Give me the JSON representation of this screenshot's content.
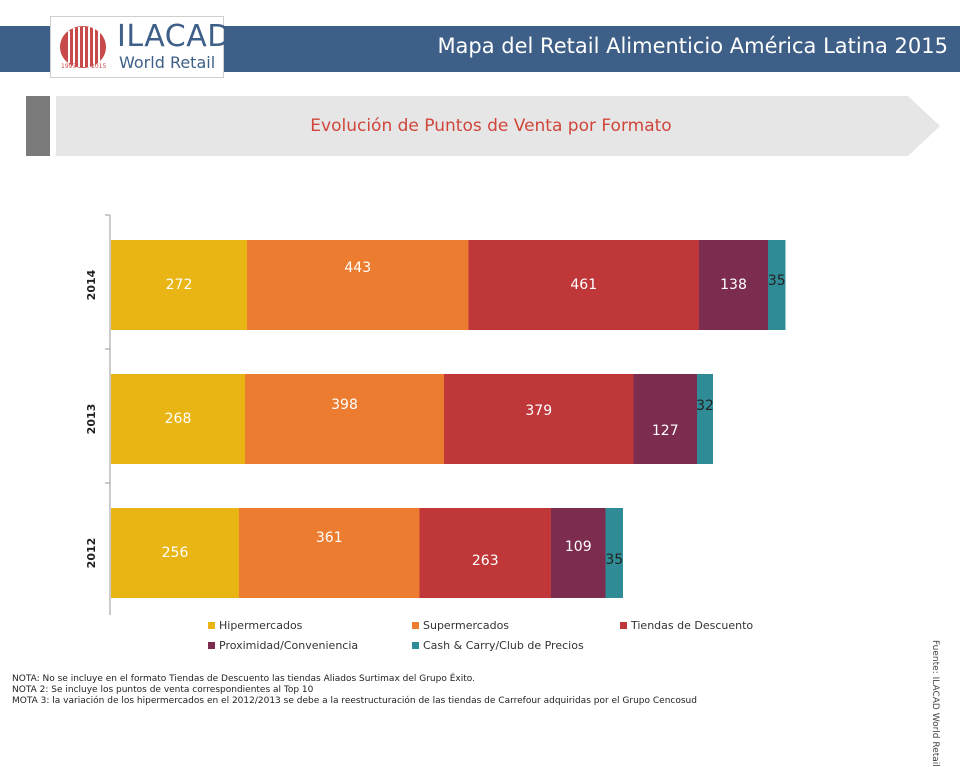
{
  "header": {
    "title": "Mapa del Retail Alimenticio América Latina 2015",
    "logo_main": "ILACAD",
    "logo_sub": "World Retail",
    "logo_badge_left": "1993",
    "logo_badge_right": "2015"
  },
  "banner": {
    "title": "Evolución de Puntos de Venta por Formato"
  },
  "chart_data": {
    "type": "bar",
    "orientation": "horizontal",
    "stacked": true,
    "categories": [
      "2014",
      "2013",
      "2012"
    ],
    "series": [
      {
        "name": "Hipermercados",
        "color": "#e8b514",
        "values": [
          272,
          268,
          256
        ]
      },
      {
        "name": "Supermercados",
        "color": "#ec7d30",
        "values": [
          443,
          398,
          361
        ]
      },
      {
        "name": "Tiendas de Descuento",
        "color": "#c0373a",
        "values": [
          461,
          379,
          263
        ]
      },
      {
        "name": "Proximidad/Conveniencia",
        "color": "#7b2c4f",
        "values": [
          138,
          127,
          109
        ]
      },
      {
        "name": "Cash & Carry/Club de Precios",
        "color": "#2f8c97",
        "values": [
          35,
          32,
          35
        ]
      }
    ],
    "grid": false,
    "legend_position": "bottom"
  },
  "notes": [
    "NOTA: No se incluye en el formato Tiendas de Descuento las tiendas Aliados Surtimax del Grupo Éxito.",
    "NOTA 2: Se incluye los puntos de venta correspondientes al Top 10",
    "MOTA 3: la variación de los hipermercados en el 2012/2013 se debe a la reestructuración de las tiendas de Carrefour adquiridas por el Grupo Cencosud"
  ],
  "source": "Fuente: ILACAD World Retail"
}
